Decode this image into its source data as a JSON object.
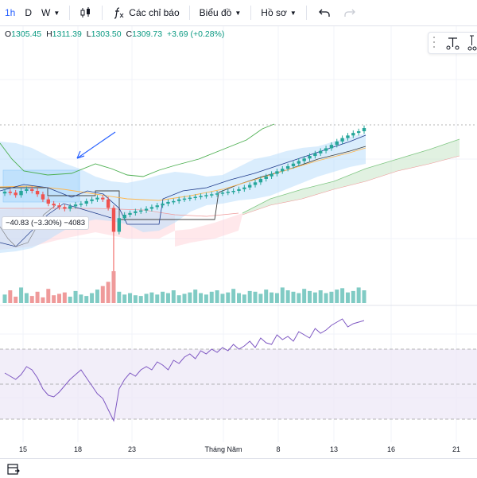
{
  "toolbar": {
    "timeframes": [
      {
        "label": "1h",
        "active": true
      },
      {
        "label": "D",
        "active": false
      },
      {
        "label": "W",
        "active": false
      }
    ],
    "indicators_label": "Các chỉ báo",
    "chart_type_label": "Biểu đồ",
    "profile_label": "Hồ sơ"
  },
  "ohlc": {
    "o_key": "O",
    "o": "1305.45",
    "h_key": "H",
    "h": "1311.39",
    "l_key": "L",
    "l": "1303.50",
    "c_key": "C",
    "c": "1309.73",
    "change": "+3.69 (+0.28%)"
  },
  "measure_badge": "−40.83 (−3.30%) −4083",
  "xaxis": {
    "labels": [
      "15",
      "18",
      "23",
      "Tháng Năm",
      "8",
      "13",
      "16",
      "21"
    ]
  },
  "colors": {
    "up": "#26a69a",
    "down": "#ef5350",
    "accent": "#2962ff",
    "rsi_line": "#7e57c2",
    "rsi_band": "#ede7f6"
  },
  "chart_data": {
    "type": "candlestick",
    "timeframe": "1h",
    "last": {
      "open": 1305.45,
      "high": 1311.39,
      "low": 1303.5,
      "close": 1309.73,
      "change": 3.69,
      "change_pct": 0.28
    },
    "close_series": [
      1235,
      1234,
      1231,
      1236,
      1238,
      1236,
      1232,
      1226,
      1221,
      1219,
      1217,
      1215,
      1218,
      1220,
      1221,
      1224,
      1226,
      1228,
      1226,
      1216,
      1188,
      1204,
      1208,
      1210,
      1212,
      1213,
      1215,
      1217,
      1219,
      1221,
      1223,
      1224,
      1226,
      1227,
      1228,
      1229,
      1230,
      1231,
      1232,
      1233,
      1234,
      1235,
      1236,
      1238,
      1240,
      1243,
      1246,
      1250,
      1253,
      1256,
      1259,
      1262,
      1265,
      1268,
      1271,
      1274,
      1277,
      1280,
      1283,
      1286,
      1290,
      1294,
      1298,
      1301,
      1304,
      1306,
      1309.73
    ],
    "volume_series": [
      12,
      18,
      9,
      22,
      14,
      10,
      16,
      8,
      20,
      11,
      13,
      15,
      9,
      17,
      12,
      10,
      14,
      19,
      24,
      30,
      45,
      16,
      12,
      14,
      11,
      10,
      13,
      15,
      12,
      16,
      14,
      18,
      11,
      13,
      15,
      19,
      14,
      12,
      16,
      18,
      13,
      15,
      20,
      14,
      12,
      17,
      16,
      13,
      19,
      15,
      14,
      22,
      18,
      16,
      14,
      20,
      17,
      15,
      18,
      14,
      16,
      19,
      21,
      15,
      17,
      22,
      18
    ],
    "rsi_series": [
      48,
      46,
      44,
      47,
      52,
      50,
      45,
      38,
      34,
      33,
      36,
      40,
      44,
      47,
      50,
      45,
      40,
      35,
      32,
      25,
      18,
      38,
      44,
      48,
      46,
      50,
      52,
      50,
      55,
      53,
      50,
      56,
      54,
      58,
      60,
      57,
      62,
      60,
      63,
      61,
      64,
      62,
      66,
      63,
      65,
      68,
      64,
      70,
      67,
      66,
      72,
      69,
      71,
      68,
      74,
      72,
      70,
      76,
      73,
      75,
      78,
      80,
      82,
      77,
      79,
      80,
      81
    ],
    "rsi_levels": [
      70,
      50,
      30
    ],
    "x_tick_labels": [
      "15",
      "18",
      "23",
      "Tháng Năm",
      "8",
      "13",
      "16",
      "21"
    ]
  }
}
